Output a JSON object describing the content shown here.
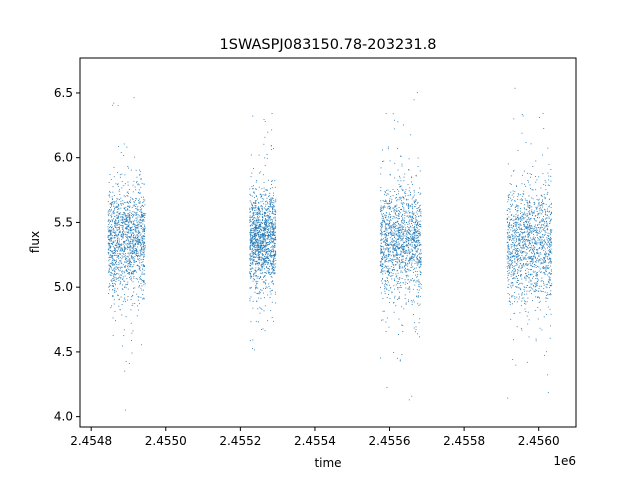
{
  "chart_data": {
    "type": "scatter",
    "title": "1SWASPJ083150.78-203231.8",
    "xlabel": "time",
    "ylabel": "flux",
    "x_offset_label": "1e6",
    "x_scale": 1000000,
    "xlim": [
      2454770,
      2456100
    ],
    "ylim": [
      3.92,
      6.77
    ],
    "xticks": [
      2454800,
      2455000,
      2455200,
      2455400,
      2455600,
      2455800,
      2456000
    ],
    "xtick_labels": [
      "2.4548",
      "2.4550",
      "2.4552",
      "2.4554",
      "2.4556",
      "2.4558",
      "2.4560"
    ],
    "yticks": [
      4.0,
      4.5,
      5.0,
      5.5,
      6.0,
      6.5
    ],
    "ytick_labels": [
      "4.0",
      "4.5",
      "5.0",
      "5.5",
      "6.0",
      "6.5"
    ],
    "grid": false,
    "marker_color": "#1f77b4",
    "series": [
      {
        "values_summary": "dense clusters of flux measurements in four observing seasons",
        "seasons": [
          {
            "x_range": [
              2454845,
              2454945
            ],
            "y_center": 5.35,
            "y_spread": 0.2,
            "y_min": 4.05,
            "y_max": 6.5
          },
          {
            "x_range": [
              2455225,
              2455295
            ],
            "y_center": 5.38,
            "y_spread": 0.18,
            "y_min": 4.2,
            "y_max": 6.6
          },
          {
            "x_range": [
              2455575,
              2455685
            ],
            "y_center": 5.35,
            "y_spread": 0.2,
            "y_min": 4.05,
            "y_max": 6.65
          },
          {
            "x_range": [
              2455915,
              2456035
            ],
            "y_center": 5.33,
            "y_spread": 0.22,
            "y_min": 4.05,
            "y_max": 6.62
          }
        ]
      }
    ]
  }
}
